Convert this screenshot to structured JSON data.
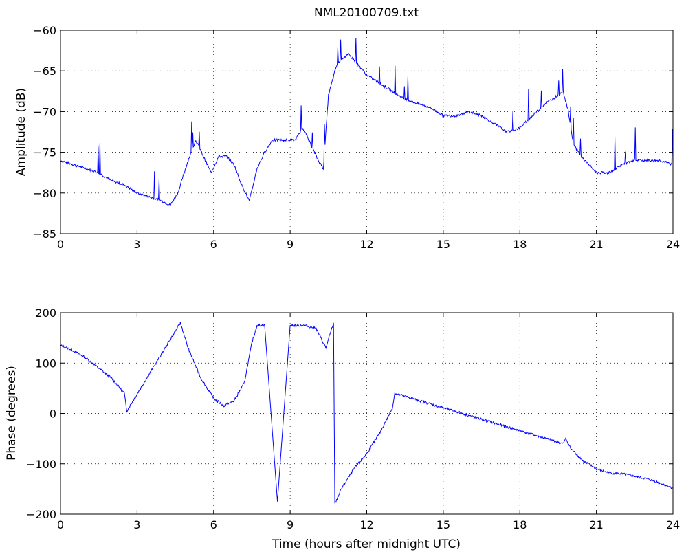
{
  "figure": {
    "title": "NML20100709.txt"
  },
  "chart_data": [
    {
      "type": "line",
      "title": "NML20100709.txt",
      "xlabel": "",
      "ylabel": "Amplitude (dB)",
      "xlim": [
        0,
        24
      ],
      "ylim": [
        -85,
        -60
      ],
      "xticks": [
        "0",
        "3",
        "6",
        "9",
        "12",
        "15",
        "18",
        "21",
        "24"
      ],
      "yticks": [
        "-60",
        "-65",
        "-70",
        "-75",
        "-80",
        "-85"
      ],
      "grid": true,
      "line_color": "#0000ff",
      "series": [
        {
          "x": [
            0,
            0.5,
            1,
            1.5,
            2,
            2.5,
            3,
            3.5,
            4,
            4.3,
            4.6,
            5.0,
            5.3,
            5.6,
            5.9,
            6.2,
            6.5,
            6.8,
            7.1,
            7.4,
            7.7,
            8.0,
            8.3,
            8.6,
            8.9,
            9.2,
            9.5,
            9.8,
            10.1,
            10.3,
            10.5,
            10.8,
            11.0,
            11.3,
            11.6,
            12.0,
            12.5,
            13.0,
            13.5,
            14.0,
            14.5,
            15.0,
            15.5,
            16.0,
            16.5,
            17.0,
            17.5,
            18.0,
            18.5,
            19.0,
            19.5,
            19.7,
            19.9,
            20.1,
            20.4,
            20.7,
            21.0,
            21.5,
            22.0,
            22.5,
            23.0,
            23.5,
            24.0
          ],
          "y": [
            -76,
            -76.5,
            -77,
            -77.5,
            -78.5,
            -79,
            -80,
            -80.5,
            -81,
            -81.5,
            -80,
            -76,
            -73.5,
            -75.5,
            -77.5,
            -75.5,
            -75.5,
            -76.5,
            -79,
            -81,
            -77,
            -75,
            -73.5,
            -73.5,
            -73.5,
            -73.5,
            -72,
            -74,
            -76,
            -77,
            -68,
            -64.5,
            -63.5,
            -63,
            -64,
            -65.5,
            -66.5,
            -67.5,
            -68.5,
            -69,
            -69.5,
            -70.5,
            -70.5,
            -70,
            -70.5,
            -71.5,
            -72.5,
            -72,
            -70.5,
            -69,
            -68,
            -67.5,
            -70,
            -74,
            -75.5,
            -76.5,
            -77.5,
            -77.5,
            -76.5,
            -76,
            -76,
            -76,
            -76.5
          ]
        }
      ]
    },
    {
      "type": "line",
      "title": "",
      "xlabel": "Time (hours after midnight UTC)",
      "ylabel": "Phase (degrees)",
      "xlim": [
        0,
        24
      ],
      "ylim": [
        -200,
        200
      ],
      "xticks": [
        "0",
        "3",
        "6",
        "9",
        "12",
        "15",
        "18",
        "21",
        "24"
      ],
      "yticks": [
        "200",
        "100",
        "0",
        "-100",
        "-200"
      ],
      "grid": true,
      "line_color": "#0000ff",
      "series": [
        {
          "x": [
            0,
            0.5,
            1.0,
            1.5,
            2.0,
            2.5,
            2.6,
            4.7,
            5.0,
            5.5,
            6.0,
            6.4,
            6.8,
            7.2,
            7.5,
            7.7,
            8.0,
            8.5,
            9.0,
            9.5,
            10.0,
            10.4,
            10.7,
            10.75,
            11.0,
            11.5,
            12.0,
            12.5,
            13.0,
            13.1,
            19.7,
            19.8,
            20.0,
            20.5,
            21.0,
            21.5,
            22.0,
            22.5,
            23.0,
            23.5,
            24.0
          ],
          "y": [
            135,
            125,
            110,
            90,
            70,
            40,
            5,
            180,
            130,
            70,
            30,
            15,
            25,
            60,
            140,
            175,
            175,
            -175,
            175,
            175,
            170,
            130,
            180,
            -180,
            -150,
            -110,
            -80,
            -40,
            10,
            40,
            -60,
            -50,
            -70,
            -95,
            -110,
            -118,
            -120,
            -125,
            -130,
            -138,
            -148
          ]
        }
      ]
    }
  ]
}
